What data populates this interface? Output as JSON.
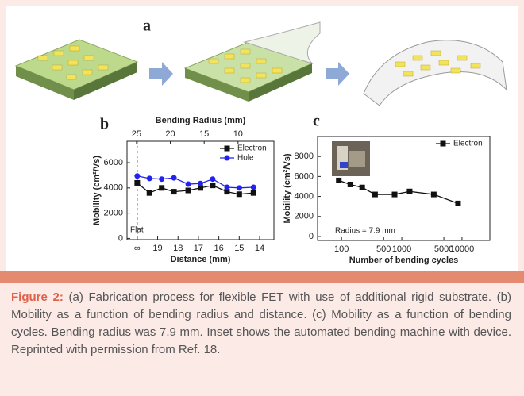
{
  "panel_a": {
    "label": "a"
  },
  "chart_data": [
    {
      "type": "line",
      "panel": "b",
      "x_label": "Distance (mm)",
      "x2_label": "Bending Radius (mm)",
      "y_label": "Mobility (cm²/Vs)",
      "xlim": [
        20.5,
        13.3
      ],
      "xticks": [
        {
          "value": 20,
          "label": "∞"
        },
        19,
        18,
        17,
        16,
        15,
        14
      ],
      "x2lim": [
        26.4,
        4.7
      ],
      "x2ticks": [
        25,
        20,
        15,
        10
      ],
      "ylim": [
        -100,
        7700
      ],
      "yticks": [
        0,
        2000,
        4000,
        6000
      ],
      "annotation": "Flat",
      "legend": "upper right",
      "x": [
        20,
        19.4,
        18.8,
        18.2,
        17.5,
        16.9,
        16.3,
        15.6,
        15.0,
        14.3
      ],
      "series": [
        {
          "name": "Electron",
          "color": "#111111",
          "marker": "square",
          "values": [
            4400,
            3600,
            4000,
            3700,
            3800,
            4000,
            4200,
            3700,
            3500,
            3600
          ]
        },
        {
          "name": "Hole",
          "color": "#2222ee",
          "marker": "circle",
          "values": [
            4950,
            4750,
            4700,
            4800,
            4300,
            4350,
            4700,
            4050,
            4000,
            4050
          ]
        }
      ]
    },
    {
      "type": "line",
      "panel": "c",
      "x_label": "Number of bending cycles",
      "y_label": "Mobility (cm²/Vs)",
      "xscale": "log",
      "xlim": [
        40,
        29000
      ],
      "xticks": [
        100,
        500,
        1000,
        5000,
        10000
      ],
      "ylim": [
        -400,
        10000
      ],
      "yticks": [
        0,
        2000,
        4000,
        6000,
        8000
      ],
      "annotation": "Radius = 7.9 mm",
      "legend": "upper right",
      "x": [
        90,
        140,
        220,
        360,
        760,
        1350,
        3400,
        8600
      ],
      "series": [
        {
          "name": "Electron",
          "color": "#111111",
          "marker": "square",
          "values": [
            5600,
            5200,
            4900,
            4200,
            4200,
            4500,
            4200,
            3300
          ]
        }
      ]
    }
  ],
  "caption": {
    "label": "Figure 2:",
    "text": " (a) Fabrication process for flexible FET with use of additional rigid substrate. (b) Mobility as a function of bending radius and distance. (c) Mobility as a function of bending cycles. Bending radius was 7.9 mm. Inset shows the automated bending machine with device. Reprinted with permission from Ref. 18."
  }
}
